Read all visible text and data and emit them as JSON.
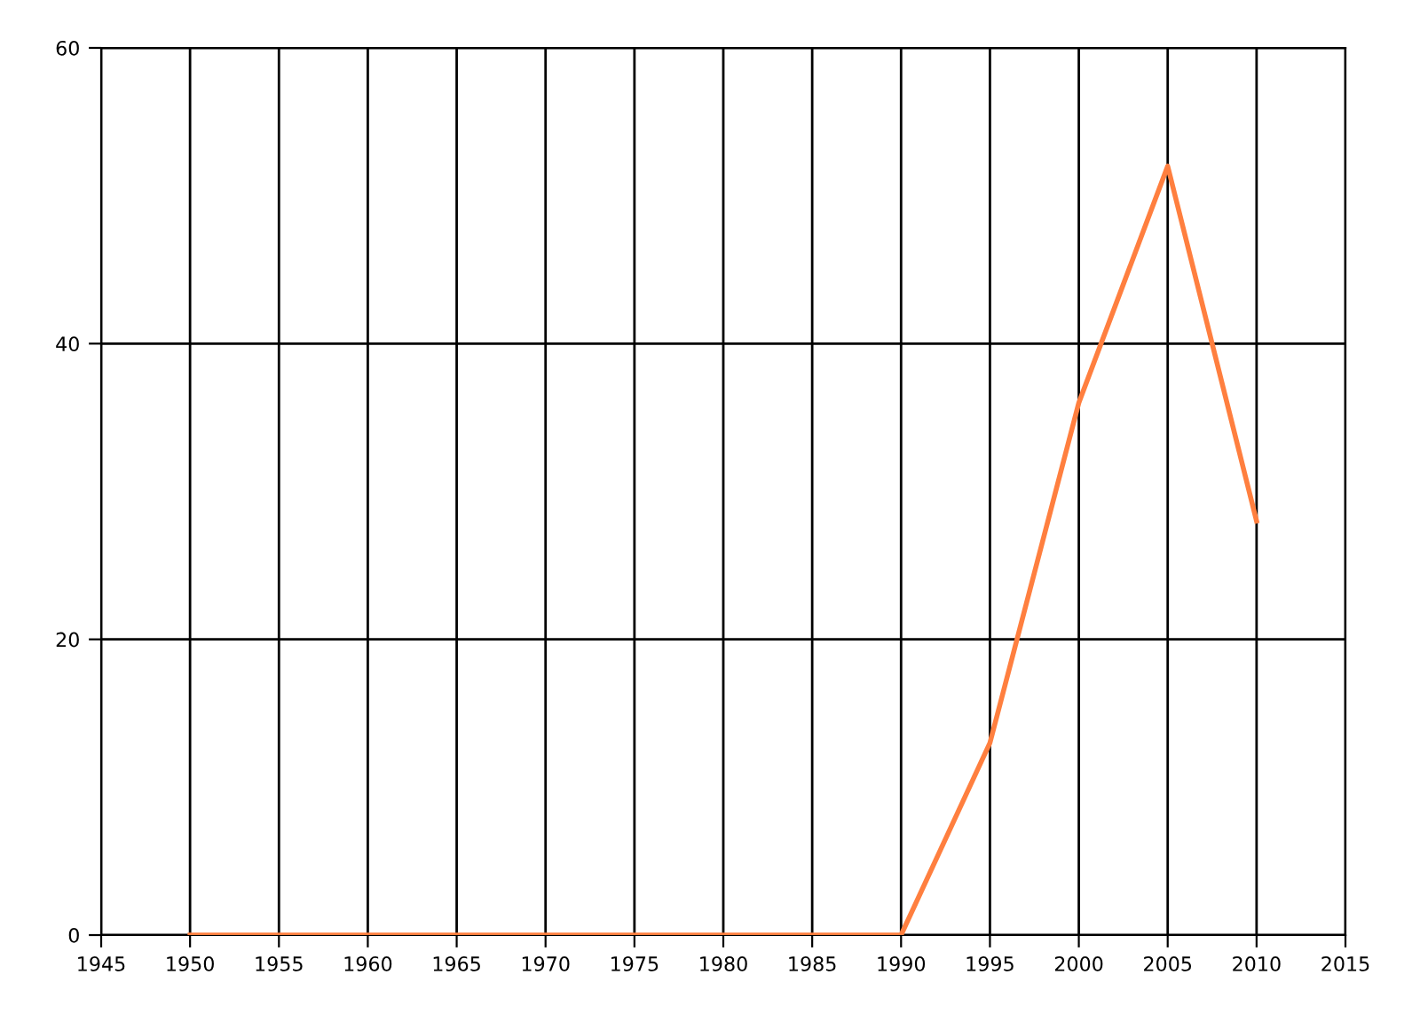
{
  "chart_data": {
    "type": "line",
    "x": [
      1950,
      1955,
      1960,
      1965,
      1970,
      1975,
      1980,
      1985,
      1990,
      1995,
      2000,
      2005,
      2010
    ],
    "series": [
      {
        "color": "#ff7f3f",
        "values": [
          0,
          0,
          0,
          0,
          0,
          0,
          0,
          0,
          0,
          13,
          36,
          52,
          28
        ]
      }
    ],
    "xlim": [
      1945,
      2015
    ],
    "xticks": [
      1945,
      1950,
      1955,
      1960,
      1965,
      1970,
      1975,
      1980,
      1985,
      1990,
      1995,
      2000,
      2005,
      2010,
      2015
    ],
    "ylim": [
      0,
      60
    ],
    "yticks": [
      0,
      20,
      40,
      60
    ],
    "grid": true,
    "marker": "none",
    "line_style": "solid"
  }
}
